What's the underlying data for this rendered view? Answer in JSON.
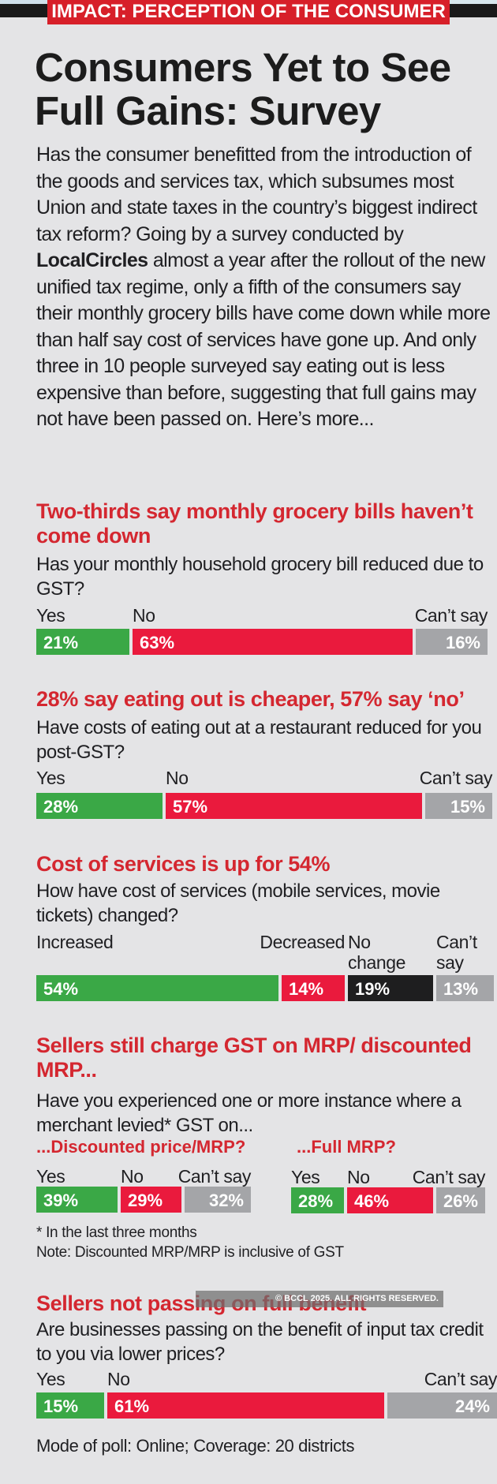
{
  "kicker": "IMPACT: PERCEPTION OF THE CONSUMER",
  "title_line1": "Consumers Yet to See",
  "title_line2": "Full Gains: Survey",
  "intro": {
    "before_bold": "Has the consumer benefitted from the introduction of the goods and services tax, which subsumes most Union and state taxes in the country’s biggest indirect tax reform? Going by a survey conducted by ",
    "bold": "LocalCircles",
    "after_bold": " almost a year after the rollout of the new unified tax regime, only a fifth of the consumers say their monthly grocery bills have come down while more than half say cost of services have gone up. And only three in 10 people surveyed say eating out is less expensive than before, suggesting that full gains may not have been passed on. Here’s more..."
  },
  "colors": {
    "yes": "#3aa846",
    "no": "#ea1a3d",
    "cant_say": "#a4a5a8",
    "no_change": "#1e1e1f",
    "accent": "#d42730"
  },
  "watermark": "© BCCL 2025. ALL RIGHTS RESERVED.",
  "footnote_asterisk": "* In the last three months",
  "footnote_note": "Note: Discounted MRP/MRP is inclusive of GST",
  "footer": "Mode of poll: Online; Coverage: 20 districts",
  "chart_data": [
    {
      "type": "bar",
      "orientation": "horizontal-stacked",
      "title": "Two-thirds say monthly grocery bills haven’t come down",
      "question": "Has your monthly household grocery bill reduced due to GST?",
      "categories": [
        "Yes",
        "No",
        "Can’t say"
      ],
      "values": [
        21,
        63,
        16
      ],
      "labels": [
        "21%",
        "63%",
        "16%"
      ],
      "unit": "%"
    },
    {
      "type": "bar",
      "orientation": "horizontal-stacked",
      "title": "28% say eating out is cheaper, 57% say ‘no’",
      "question": "Have costs of eating out at a restaurant reduced for you post-GST?",
      "categories": [
        "Yes",
        "No",
        "Can’t say"
      ],
      "values": [
        28,
        57,
        15
      ],
      "labels": [
        "28%",
        "57%",
        "15%"
      ],
      "unit": "%"
    },
    {
      "type": "bar",
      "orientation": "horizontal-stacked",
      "title": "Cost of services is up for 54%",
      "question": "How have cost of services (mobile services, movie tickets) changed?",
      "categories": [
        "Increased",
        "Decreased",
        "No change",
        "Can’t say"
      ],
      "values": [
        54,
        14,
        19,
        13
      ],
      "labels": [
        "54%",
        "14%",
        "19%",
        "13%"
      ],
      "unit": "%"
    },
    {
      "type": "bar",
      "orientation": "horizontal-stacked",
      "title": "Sellers still charge GST on MRP/ discounted MRP...",
      "question": "Have you experienced one or more instance where a merchant levied* GST on...",
      "subtitle": "...Discounted price/MRP?",
      "categories": [
        "Yes",
        "No",
        "Can’t say"
      ],
      "values": [
        39,
        29,
        32
      ],
      "labels": [
        "39%",
        "29%",
        "32%"
      ],
      "unit": "%"
    },
    {
      "type": "bar",
      "orientation": "horizontal-stacked",
      "subtitle": "...Full MRP?",
      "categories": [
        "Yes",
        "No",
        "Can’t say"
      ],
      "values": [
        28,
        46,
        26
      ],
      "labels": [
        "28%",
        "46%",
        "26%"
      ],
      "unit": "%"
    },
    {
      "type": "bar",
      "orientation": "horizontal-stacked",
      "title": "Sellers not passing on full benefit",
      "question": "Are businesses passing on the benefit of input tax credit to you via lower prices?",
      "categories": [
        "Yes",
        "No",
        "Can’t say"
      ],
      "values": [
        15,
        61,
        24
      ],
      "labels": [
        "15%",
        "61%",
        "24%"
      ],
      "unit": "%"
    }
  ]
}
